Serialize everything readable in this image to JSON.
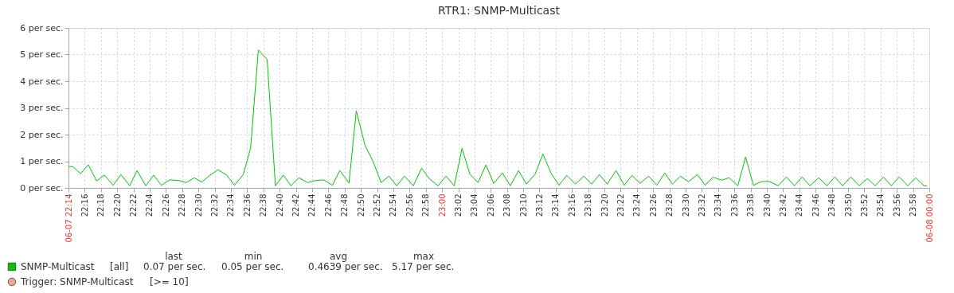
{
  "chart_data": {
    "type": "line",
    "title": "RTR1: SNMP-Multicast",
    "x": [
      22.2333,
      22.242,
      22.258,
      22.274,
      22.291,
      22.307,
      22.325,
      22.341,
      22.359,
      22.374,
      22.392,
      22.408,
      22.424,
      22.441,
      22.459,
      22.475,
      22.491,
      22.507,
      22.524,
      22.54,
      22.558,
      22.574,
      22.592,
      22.607,
      22.623,
      22.641,
      22.658,
      22.674,
      22.69,
      22.706,
      22.724,
      22.741,
      22.757,
      22.775,
      22.79,
      22.809,
      22.824,
      22.842,
      22.858,
      22.875,
      22.891,
      22.907,
      22.923,
      22.941,
      22.958,
      22.974,
      22.992,
      23.008,
      23.025,
      23.041,
      23.057,
      23.074,
      23.09,
      23.106,
      23.124,
      23.14,
      23.157,
      23.173,
      23.191,
      23.207,
      23.224,
      23.24,
      23.256,
      23.274,
      23.291,
      23.307,
      23.323,
      23.339,
      23.357,
      23.374,
      23.39,
      23.406,
      23.424,
      23.441,
      23.457,
      23.473,
      23.489,
      23.506,
      23.524,
      23.54,
      23.556,
      23.574,
      23.589,
      23.607,
      23.623,
      23.639,
      23.656,
      23.672,
      23.69,
      23.707,
      23.723,
      23.739,
      23.755,
      23.773,
      23.79,
      23.806,
      23.822,
      23.839,
      23.856,
      23.873,
      23.889,
      23.906,
      23.922,
      23.938,
      23.956,
      23.972,
      23.989,
      23.995
    ],
    "series": [
      {
        "name": "SNMP-Multicast",
        "color": "#00c800",
        "values": [
          0.8,
          0.8,
          0.53,
          0.87,
          0.26,
          0.48,
          0.1,
          0.5,
          0.08,
          0.65,
          0.08,
          0.48,
          0.1,
          0.3,
          0.28,
          0.2,
          0.38,
          0.22,
          0.48,
          0.68,
          0.48,
          0.1,
          0.5,
          1.49,
          5.17,
          4.82,
          0.08,
          0.48,
          0.08,
          0.38,
          0.2,
          0.28,
          0.3,
          0.1,
          0.65,
          0.18,
          2.89,
          1.59,
          1.01,
          0.2,
          0.44,
          0.08,
          0.44,
          0.08,
          0.74,
          0.34,
          0.08,
          0.44,
          0.08,
          1.48,
          0.52,
          0.2,
          0.86,
          0.17,
          0.56,
          0.08,
          0.65,
          0.14,
          0.52,
          1.27,
          0.54,
          0.1,
          0.47,
          0.14,
          0.44,
          0.14,
          0.5,
          0.14,
          0.65,
          0.1,
          0.47,
          0.17,
          0.44,
          0.1,
          0.56,
          0.14,
          0.44,
          0.23,
          0.5,
          0.1,
          0.4,
          0.29,
          0.38,
          0.08,
          1.16,
          0.1,
          0.24,
          0.24,
          0.08,
          0.41,
          0.08,
          0.41,
          0.08,
          0.38,
          0.08,
          0.41,
          0.08,
          0.41,
          0.08,
          0.35,
          0.08,
          0.41,
          0.08,
          0.41,
          0.08,
          0.38,
          0.08,
          0.07
        ]
      },
      {
        "name": "Trigger: SNMP-Multicast",
        "color": "#f0a890",
        "type": "scatter",
        "values": [
          null,
          null,
          null,
          null,
          null,
          null,
          null,
          null,
          null,
          null,
          null,
          null,
          null,
          null,
          null,
          null,
          null,
          null,
          null,
          null,
          null,
          null,
          null,
          null,
          null,
          null,
          null,
          null,
          null,
          null,
          null,
          null,
          null,
          null,
          null,
          null,
          null,
          null,
          null,
          null,
          null,
          null,
          null,
          null,
          null,
          null,
          null,
          null,
          null,
          null,
          null,
          null,
          null,
          null,
          null,
          null,
          null,
          null,
          null,
          null,
          null,
          null,
          null,
          null,
          null,
          null,
          null,
          null,
          null,
          null,
          null,
          null,
          null,
          null,
          null,
          null,
          null,
          null,
          null,
          null,
          null,
          null,
          null,
          null,
          null,
          null,
          null,
          null,
          null,
          null,
          null,
          null,
          null,
          null,
          null,
          null,
          null,
          null,
          null,
          null,
          null,
          null,
          null,
          null,
          null,
          null,
          null,
          null
        ]
      }
    ],
    "xlim": [
      22.2333,
      24
    ],
    "xticks": [
      {
        "value": 22.2333,
        "label": "06-07 22:14"
      },
      {
        "value": 22.2667,
        "label": "22:16"
      },
      {
        "value": 22.3,
        "label": "22:18"
      },
      {
        "value": 22.3333,
        "label": "22:20"
      },
      {
        "value": 22.3667,
        "label": "22:22"
      },
      {
        "value": 22.4,
        "label": "22:24"
      },
      {
        "value": 22.4333,
        "label": "22:26"
      },
      {
        "value": 22.4667,
        "label": "22:28"
      },
      {
        "value": 22.5,
        "label": "22:30"
      },
      {
        "value": 22.5333,
        "label": "22:32"
      },
      {
        "value": 22.5667,
        "label": "22:34"
      },
      {
        "value": 22.6,
        "label": "22:36"
      },
      {
        "value": 22.6333,
        "label": "22:38"
      },
      {
        "value": 22.6667,
        "label": "22:40"
      },
      {
        "value": 22.7,
        "label": "22:42"
      },
      {
        "value": 22.7333,
        "label": "22:44"
      },
      {
        "value": 22.7667,
        "label": "22:46"
      },
      {
        "value": 22.8,
        "label": "22:48"
      },
      {
        "value": 22.8333,
        "label": "22:50"
      },
      {
        "value": 22.8667,
        "label": "22:52"
      },
      {
        "value": 22.9,
        "label": "22:54"
      },
      {
        "value": 22.9333,
        "label": "22:56"
      },
      {
        "value": 22.9667,
        "label": "22:58"
      },
      {
        "value": 23,
        "label": "23:00"
      },
      {
        "value": 23.0333,
        "label": "23:02"
      },
      {
        "value": 23.0667,
        "label": "23:04"
      },
      {
        "value": 23.1,
        "label": "23:06"
      },
      {
        "value": 23.1333,
        "label": "23:08"
      },
      {
        "value": 23.1667,
        "label": "23:10"
      },
      {
        "value": 23.2,
        "label": "23:12"
      },
      {
        "value": 23.2333,
        "label": "23:14"
      },
      {
        "value": 23.2667,
        "label": "23:16"
      },
      {
        "value": 23.3,
        "label": "23:18"
      },
      {
        "value": 23.3333,
        "label": "23:20"
      },
      {
        "value": 23.3667,
        "label": "23:22"
      },
      {
        "value": 23.4,
        "label": "23:24"
      },
      {
        "value": 23.4333,
        "label": "23:26"
      },
      {
        "value": 23.4667,
        "label": "23:28"
      },
      {
        "value": 23.5,
        "label": "23:30"
      },
      {
        "value": 23.5333,
        "label": "23:32"
      },
      {
        "value": 23.5667,
        "label": "23:34"
      },
      {
        "value": 23.6,
        "label": "23:36"
      },
      {
        "value": 23.6333,
        "label": "23:38"
      },
      {
        "value": 23.6667,
        "label": "23:40"
      },
      {
        "value": 23.7,
        "label": "23:42"
      },
      {
        "value": 23.7333,
        "label": "23:44"
      },
      {
        "value": 23.7667,
        "label": "23:46"
      },
      {
        "value": 23.8,
        "label": "23:48"
      },
      {
        "value": 23.8333,
        "label": "23:50"
      },
      {
        "value": 23.8667,
        "label": "23:52"
      },
      {
        "value": 23.9,
        "label": "23:54"
      },
      {
        "value": 23.9333,
        "label": "23:56"
      },
      {
        "value": 23.9667,
        "label": "23:58"
      },
      {
        "value": 24,
        "label": "06-08 00:00"
      }
    ],
    "ylim": [
      0,
      6
    ],
    "yticks": [
      {
        "value": 0,
        "label": "0 per sec."
      },
      {
        "value": 1,
        "label": "1 per sec."
      },
      {
        "value": 2,
        "label": "2 per sec."
      },
      {
        "value": 3,
        "label": "3 per sec."
      },
      {
        "value": 4,
        "label": "4 per sec."
      },
      {
        "value": 5,
        "label": "5 per sec."
      },
      {
        "value": 6,
        "label": "6 per sec."
      }
    ],
    "grid": true,
    "legend": "bottom left",
    "line_style": "solid",
    "marker": "none",
    "annotations": [
      "last",
      "min",
      "avg",
      "max",
      "[all]",
      "0.07 per sec.",
      "0.05 per sec.",
      "0.4639 per sec.",
      "5.17 per sec.",
      "[>= 10]"
    ]
  }
}
